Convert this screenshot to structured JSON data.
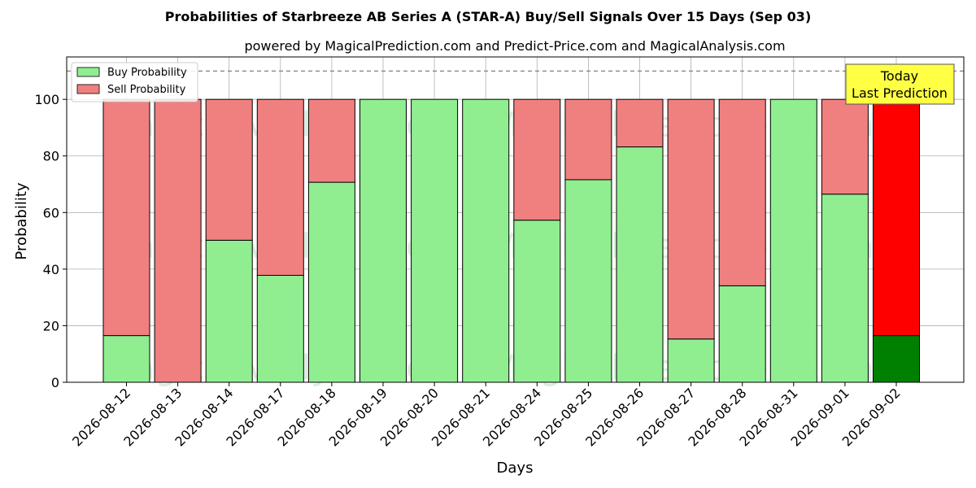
{
  "chart_data": {
    "type": "bar",
    "stacked": true,
    "title": "Probabilities of Starbreeze AB Series A (STAR-A) Buy/Sell Signals Over 15 Days (Sep 03)",
    "subtitle": "powered by MagicalPrediction.com and Predict-Price.com and MagicalAnalysis.com",
    "xlabel": "Days",
    "ylabel": "Probability",
    "ylim": [
      0,
      115
    ],
    "yticks": [
      0,
      20,
      40,
      60,
      80,
      100
    ],
    "grid": true,
    "legend_position": "top-left",
    "categories": [
      "2026-08-12",
      "2026-08-13",
      "2026-08-14",
      "2026-08-17",
      "2026-08-18",
      "2026-08-19",
      "2026-08-20",
      "2026-08-21",
      "2026-08-24",
      "2026-08-25",
      "2026-08-26",
      "2026-08-27",
      "2026-08-28",
      "2026-08-31",
      "2026-09-01",
      "2026-09-02"
    ],
    "series": [
      {
        "name": "Buy Probability",
        "color": "#90ee90",
        "highlight_color": "#008000",
        "values": [
          16.5,
          0,
          50.2,
          37.8,
          70.7,
          100,
          100,
          100,
          57.3,
          71.6,
          83.2,
          15.3,
          34.1,
          100,
          66.5,
          16.5
        ]
      },
      {
        "name": "Sell Probability",
        "color": "#f08080",
        "highlight_color": "#ff0000",
        "values": [
          83.5,
          100,
          49.8,
          62.2,
          29.3,
          0,
          0,
          0,
          42.7,
          28.4,
          16.8,
          84.7,
          65.9,
          0,
          33.5,
          83.5
        ]
      }
    ],
    "reference_line": {
      "y": 110,
      "style": "dashed",
      "color": "#808080"
    },
    "annotation": {
      "line1": "Today",
      "line2": "Last Prediction",
      "background": "#ffff44"
    },
    "watermarks": [
      "MagicalAnalysis.com",
      "MagicalPrediction.com"
    ]
  }
}
